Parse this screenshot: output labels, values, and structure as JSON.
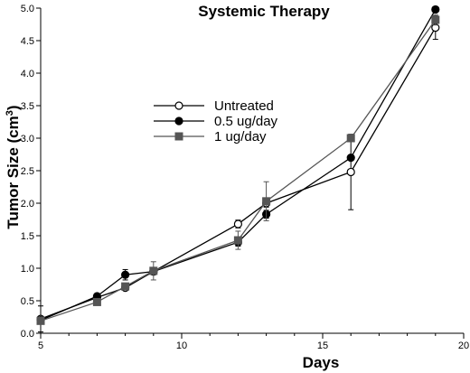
{
  "chart_data": {
    "type": "line",
    "title": "Systemic Therapy",
    "xlabel": "Days",
    "ylabel": "Tumor Size (cm",
    "ylabel_sup": "3",
    "ylabel_end": ")",
    "xlim": [
      5,
      20
    ],
    "ylim": [
      0,
      5
    ],
    "xticks": [
      5,
      10,
      15,
      20
    ],
    "xtick_labels": [
      "5",
      "10",
      "15",
      "20"
    ],
    "yticks": [
      0,
      0.5,
      1,
      1.5,
      2,
      2.5,
      3,
      3.5,
      4,
      4.5,
      5
    ],
    "ytick_labels": [
      "0.0",
      "0.5",
      "1.0",
      "1.5",
      "2.0",
      "2.5",
      "3.0",
      "3.5",
      "4.0",
      "4.5",
      "5.0"
    ],
    "grid": false,
    "legend_position": "upper-left-center",
    "series": [
      {
        "name": "Untreated",
        "marker": "open-circle",
        "color": "#000000",
        "x": [
          5,
          7,
          8,
          9,
          12,
          13,
          16,
          19
        ],
        "y": [
          0.22,
          0.55,
          0.7,
          0.95,
          1.68,
          2.0,
          2.48,
          4.7
        ],
        "err": [
          0.2,
          0.05,
          0.04,
          0.05,
          0.06,
          0.06,
          0.58,
          0.18
        ]
      },
      {
        "name": "0.5 ug/day",
        "marker": "filled-circle",
        "color": "#000000",
        "x": [
          5,
          7,
          8,
          9,
          12,
          13,
          16,
          19
        ],
        "y": [
          0.2,
          0.57,
          0.9,
          0.95,
          1.4,
          1.83,
          2.7,
          4.98
        ],
        "err": [
          0.03,
          0.04,
          0.08,
          0.03,
          0.06,
          0.06,
          0.04,
          0.02
        ]
      },
      {
        "name": "1 ug/day",
        "marker": "filled-square",
        "color": "#555555",
        "x": [
          5,
          7,
          8,
          9,
          12,
          13,
          16,
          19
        ],
        "y": [
          0.19,
          0.48,
          0.72,
          0.96,
          1.43,
          2.03,
          3.0,
          4.82
        ],
        "err": [
          0.03,
          0.03,
          0.04,
          0.14,
          0.14,
          0.3,
          0.03,
          0.08
        ]
      }
    ]
  }
}
